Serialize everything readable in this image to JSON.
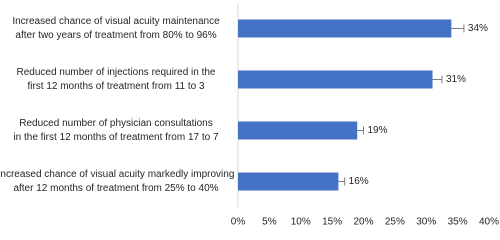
{
  "chart_data": {
    "type": "bar",
    "orientation": "horizontal",
    "categories": [
      [
        "Increased chance of visual acuity maintenance",
        "after two years of treatment from 80% to 96%"
      ],
      [
        "Reduced number of injections required in the",
        "first 12 months of treatment from 11 to 3"
      ],
      [
        "Reduced number of physician consultations",
        "in the first 12 months of treatment from 17 to 7"
      ],
      [
        "Increased chance of visual acuity markedly improving",
        "after 12 months of treatment from 25% to 40%"
      ]
    ],
    "values": [
      34,
      31,
      19,
      16
    ],
    "value_labels": [
      "34%",
      "31%",
      "19%",
      "16%"
    ],
    "errors": [
      2,
      1.5,
      1,
      1
    ],
    "color": "#4472c4",
    "error_color": "#7f7f7f",
    "xlim": [
      0,
      40
    ],
    "xticks": [
      {
        "value": 0,
        "label": "0%"
      },
      {
        "value": 5,
        "label": "5%"
      },
      {
        "value": 10,
        "label": "10%"
      },
      {
        "value": 15,
        "label": "15%"
      },
      {
        "value": 20,
        "label": "20%"
      },
      {
        "value": 25,
        "label": "25%"
      },
      {
        "value": 30,
        "label": "30%"
      },
      {
        "value": 35,
        "label": "35%"
      },
      {
        "value": 40,
        "label": "40%"
      }
    ]
  }
}
